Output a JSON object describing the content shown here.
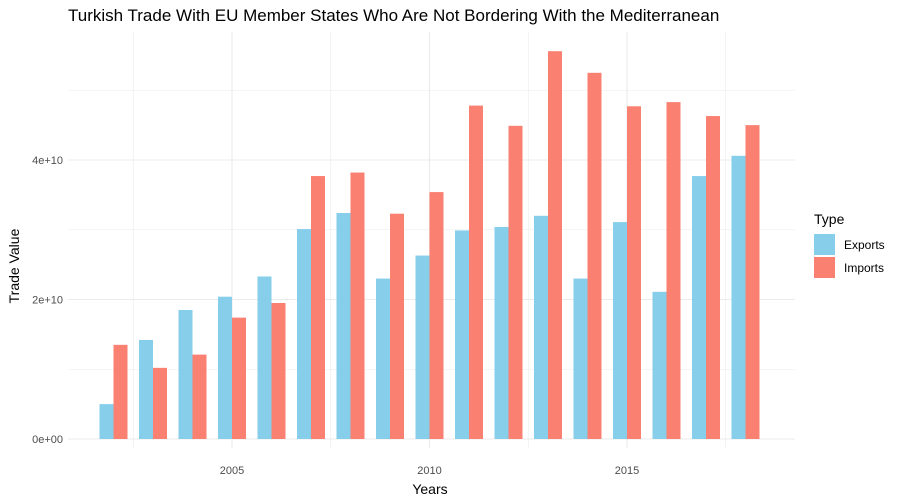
{
  "chart_data": {
    "type": "bar",
    "title": "Turkish Trade With EU Member States Who Are Not Bordering With the Mediterranean",
    "xlabel": "Years",
    "ylabel": "Trade Value",
    "x": [
      2002,
      2003,
      2004,
      2005,
      2006,
      2007,
      2008,
      2009,
      2010,
      2011,
      2012,
      2013,
      2014,
      2015,
      2016,
      2017,
      2018
    ],
    "x_ticks": [
      2005,
      2010,
      2015
    ],
    "x_tick_labels": [
      "2005",
      "2010",
      "2015"
    ],
    "y_ticks": [
      0,
      20000000000,
      40000000000
    ],
    "y_tick_labels": [
      "0e+00",
      "2e+10",
      "4e+10"
    ],
    "ylim": [
      0,
      56000000000
    ],
    "grid": true,
    "legend": {
      "title": "Type",
      "position": "right"
    },
    "series": [
      {
        "name": "Exports",
        "color": "#87CEEB",
        "values": [
          5000000000,
          14200000000,
          18500000000,
          20400000000,
          23300000000,
          30100000000,
          32400000000,
          23000000000,
          26300000000,
          29900000000,
          30400000000,
          32000000000,
          23000000000,
          31100000000,
          21100000000,
          37700000000,
          40600000000
        ]
      },
      {
        "name": "Imports",
        "color": "#FA8072",
        "values": [
          13500000000,
          10200000000,
          12100000000,
          17400000000,
          19500000000,
          37700000000,
          38200000000,
          32300000000,
          35400000000,
          47800000000,
          44900000000,
          55600000000,
          52500000000,
          47700000000,
          48300000000,
          46300000000,
          45000000000
        ]
      }
    ]
  }
}
